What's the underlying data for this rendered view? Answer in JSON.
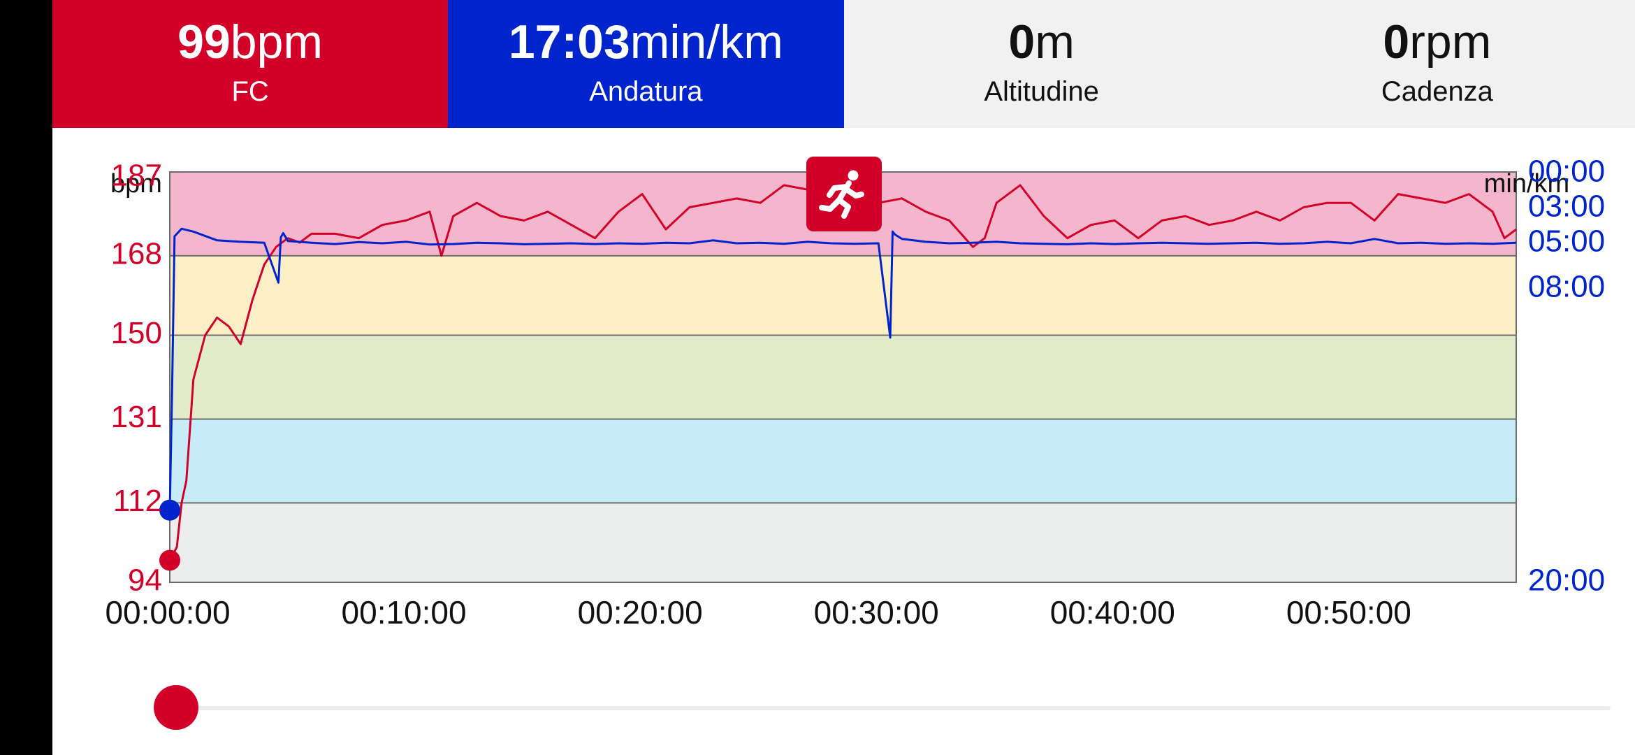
{
  "stats": [
    {
      "value": "99",
      "unit": "bpm",
      "label": "FC"
    },
    {
      "value": "17:03",
      "unit": "min/km",
      "label": "Andatura"
    },
    {
      "value": "0",
      "unit": "m",
      "label": "Altitudine"
    },
    {
      "value": "0",
      "unit": "rpm",
      "label": "Cadenza"
    }
  ],
  "activity_icon": "running-person-icon",
  "colors": {
    "hr": "#d20028",
    "pace": "#0024cc",
    "zones": [
      "#f4b6cc",
      "#fcefc6",
      "#e2ebca",
      "#c7ebf8",
      "#eceeee"
    ],
    "grid": "#6b6b6b",
    "slider_track": "#ececec"
  },
  "chart_data": {
    "type": "line",
    "left_axis_label": "bpm",
    "right_axis_label": "min/km",
    "left_ticks": [
      "187",
      "168",
      "150",
      "131",
      "112",
      "94"
    ],
    "right_ticks": [
      "00:00",
      "03:00",
      "05:00",
      "08:00",
      "20:00"
    ],
    "x_ticks": [
      "00:00:00",
      "00:10:00",
      "00:20:00",
      "00:30:00",
      "00:40:00",
      "00:50:00"
    ],
    "x_range_min": [
      0,
      57
    ],
    "hr_range_bpm": [
      94,
      187
    ],
    "hr_zones_bpm": [
      [
        168,
        187
      ],
      [
        150,
        168
      ],
      [
        131,
        150
      ],
      [
        112,
        131
      ],
      [
        94,
        112
      ]
    ],
    "series": [
      {
        "name": "FC",
        "unit": "bpm",
        "x_min": [
          0,
          0.3,
          0.5,
          0.7,
          1,
          1.5,
          2,
          2.5,
          3,
          3.5,
          4,
          4.5,
          5,
          5.5,
          6,
          7,
          8,
          9,
          10,
          11,
          11.5,
          12,
          13,
          14,
          15,
          16,
          17,
          18,
          19,
          20,
          21,
          22,
          23,
          24,
          25,
          26,
          27,
          28,
          29,
          30,
          31,
          32,
          33,
          34,
          34.5,
          35,
          36,
          37,
          38,
          39,
          40,
          41,
          42,
          43,
          44,
          45,
          46,
          47,
          48,
          49,
          50,
          51,
          52,
          53,
          54,
          55,
          56,
          56.5,
          57
        ],
        "values": [
          99,
          102,
          112,
          117,
          140,
          150,
          154,
          152,
          148,
          158,
          166,
          170,
          172,
          171,
          173,
          173,
          172,
          175,
          176,
          178,
          168,
          177,
          180,
          177,
          176,
          178,
          175,
          172,
          178,
          182,
          174,
          179,
          180,
          181,
          180,
          184,
          183,
          182,
          182,
          180,
          181,
          178,
          176,
          170,
          172,
          180,
          184,
          177,
          172,
          175,
          176,
          172,
          176,
          177,
          175,
          176,
          178,
          176,
          179,
          180,
          180,
          176,
          182,
          181,
          180,
          182,
          178,
          172,
          174
        ]
      },
      {
        "name": "Andatura",
        "unit": "min/km",
        "x_min": [
          0,
          0.1,
          0.2,
          0.5,
          1,
          2,
          3,
          4,
          4.6,
          4.7,
          4.8,
          5,
          6,
          7,
          8,
          9,
          10,
          11,
          12,
          13,
          14,
          15,
          16,
          17,
          18,
          19,
          20,
          21,
          22,
          23,
          24,
          25,
          26,
          27,
          28,
          29,
          30,
          30.5,
          30.6,
          30.7,
          31,
          32,
          33,
          34,
          35,
          36,
          37,
          38,
          39,
          40,
          41,
          42,
          43,
          44,
          45,
          46,
          47,
          48,
          49,
          50,
          51,
          52,
          53,
          54,
          55,
          56,
          57
        ],
        "values": [
          "17:03",
          "12:00",
          "04:36",
          "04:10",
          "04:20",
          "04:50",
          "04:55",
          "04:58",
          "07:36",
          "04:40",
          "04:25",
          "04:52",
          "04:58",
          "05:03",
          "04:56",
          "05:00",
          "04:55",
          "05:05",
          "05:03",
          "04:58",
          "05:00",
          "05:04",
          "05:02",
          "05:00",
          "05:03",
          "05:00",
          "05:02",
          "04:58",
          "05:00",
          "04:50",
          "05:00",
          "04:58",
          "05:02",
          "04:55",
          "05:00",
          "05:02",
          "05:00",
          "10:00",
          "04:20",
          "04:30",
          "04:45",
          "04:55",
          "05:00",
          "04:58",
          "04:55",
          "05:00",
          "05:02",
          "05:04",
          "05:00",
          "05:03",
          "05:00",
          "04:58",
          "05:00",
          "05:02",
          "05:00",
          "04:58",
          "05:02",
          "05:00",
          "04:55",
          "05:00",
          "04:45",
          "05:00",
          "04:58",
          "05:02",
          "05:00",
          "05:02",
          "04:58"
        ]
      }
    ],
    "cursor_x_min": 0
  },
  "slider": {
    "position_fraction": 0.0
  }
}
